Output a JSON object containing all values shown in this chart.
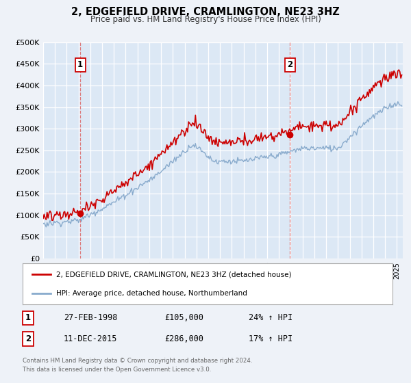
{
  "title": "2, EDGEFIELD DRIVE, CRAMLINGTON, NE23 3HZ",
  "subtitle": "Price paid vs. HM Land Registry's House Price Index (HPI)",
  "background_color": "#eef2f8",
  "plot_bg_color": "#dce8f5",
  "grid_color": "#ffffff",
  "red_line_color": "#cc0000",
  "blue_line_color": "#88aacc",
  "sale1_date": 1998.15,
  "sale1_price": 105000,
  "sale1_label": "1",
  "sale2_date": 2015.94,
  "sale2_price": 286000,
  "sale2_label": "2",
  "ylabel_ticks": [
    0,
    50000,
    100000,
    150000,
    200000,
    250000,
    300000,
    350000,
    400000,
    450000,
    500000
  ],
  "ylabel_labels": [
    "£0",
    "£50K",
    "£100K",
    "£150K",
    "£200K",
    "£250K",
    "£300K",
    "£350K",
    "£400K",
    "£450K",
    "£500K"
  ],
  "xmin": 1995.0,
  "xmax": 2025.5,
  "ymin": 0,
  "ymax": 500000,
  "legend_line1": "2, EDGEFIELD DRIVE, CRAMLINGTON, NE23 3HZ (detached house)",
  "legend_line2": "HPI: Average price, detached house, Northumberland",
  "table_row1_label": "1",
  "table_row1_date": "27-FEB-1998",
  "table_row1_price": "£105,000",
  "table_row1_hpi": "24% ↑ HPI",
  "table_row2_label": "2",
  "table_row2_date": "11-DEC-2015",
  "table_row2_price": "£286,000",
  "table_row2_hpi": "17% ↑ HPI",
  "footnote1": "Contains HM Land Registry data © Crown copyright and database right 2024.",
  "footnote2": "This data is licensed under the Open Government Licence v3.0."
}
